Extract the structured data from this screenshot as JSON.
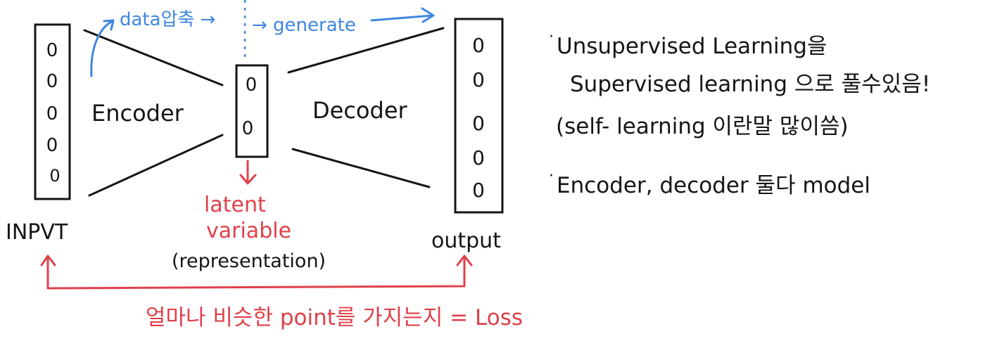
{
  "diagram": {
    "input_nodes": [
      "0",
      "0",
      "0",
      "0",
      "0"
    ],
    "latent_nodes": [
      "0",
      "0"
    ],
    "output_nodes": [
      "0",
      "0",
      "0",
      "0",
      "0"
    ],
    "input_label": "INPVT",
    "output_label": "output",
    "encoder_label": "Encoder",
    "decoder_label": "Decoder",
    "top_left_label": "data압축 →",
    "top_right_label": "→ generate",
    "latent_label_line1": "latent",
    "latent_label_line2": "variable",
    "latent_paren": "(representation)",
    "loss_label": "얼마나 비슷한 point를 가지는지 = Loss",
    "colors": {
      "ink": "#151515",
      "blue": "#3f86e0",
      "red": "#e0404a"
    }
  },
  "notes": {
    "line1": "Unsupervised Learning을",
    "line2": "Supervised learning 으로 풀수있음!",
    "line3": "(self- learning 이란말 많이씀)",
    "line4": "Encoder, decoder 둘다 model"
  }
}
